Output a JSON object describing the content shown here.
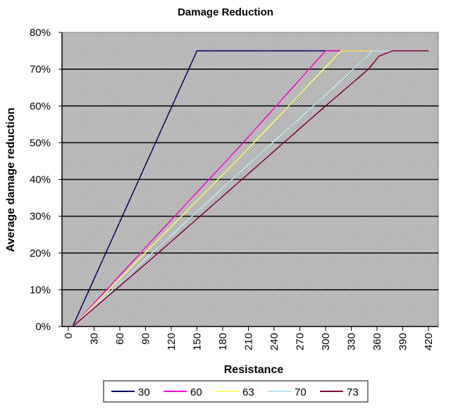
{
  "chart_data": {
    "type": "line",
    "title": "Damage Reduction",
    "xlabel": "Resistance",
    "ylabel": "Average damage reduction",
    "xlim": [
      0,
      420
    ],
    "ylim": [
      0,
      80
    ],
    "xticks": [
      "0",
      "30",
      "60",
      "90",
      "120",
      "150",
      "180",
      "210",
      "240",
      "270",
      "300",
      "330",
      "360",
      "390",
      "420"
    ],
    "yticks": [
      "0%",
      "10%",
      "20%",
      "30%",
      "40%",
      "50%",
      "60%",
      "70%",
      "80%"
    ],
    "grid": "horizontal",
    "legend_position": "bottom",
    "series": [
      {
        "name": "30",
        "color": "#000066",
        "x": [
          5,
          150,
          420
        ],
        "y": [
          0,
          75,
          75
        ]
      },
      {
        "name": "60",
        "color": "#ff00cc",
        "x": [
          5,
          100,
          200,
          300,
          420
        ],
        "y": [
          0,
          24,
          49,
          75,
          75
        ]
      },
      {
        "name": "63",
        "color": "#ffff66",
        "x": [
          5,
          100,
          200,
          318,
          420
        ],
        "y": [
          0,
          22.5,
          46,
          75,
          75
        ]
      },
      {
        "name": "70",
        "color": "#b8e6f0",
        "x": [
          5,
          100,
          200,
          300,
          355,
          420
        ],
        "y": [
          0,
          20.5,
          42,
          63,
          75,
          75
        ]
      },
      {
        "name": "73",
        "color": "#800040",
        "x": [
          5,
          100,
          200,
          300,
          350,
          362,
          378,
          420
        ],
        "y": [
          0,
          19,
          39.5,
          60,
          70,
          73.5,
          75,
          75
        ]
      }
    ]
  }
}
